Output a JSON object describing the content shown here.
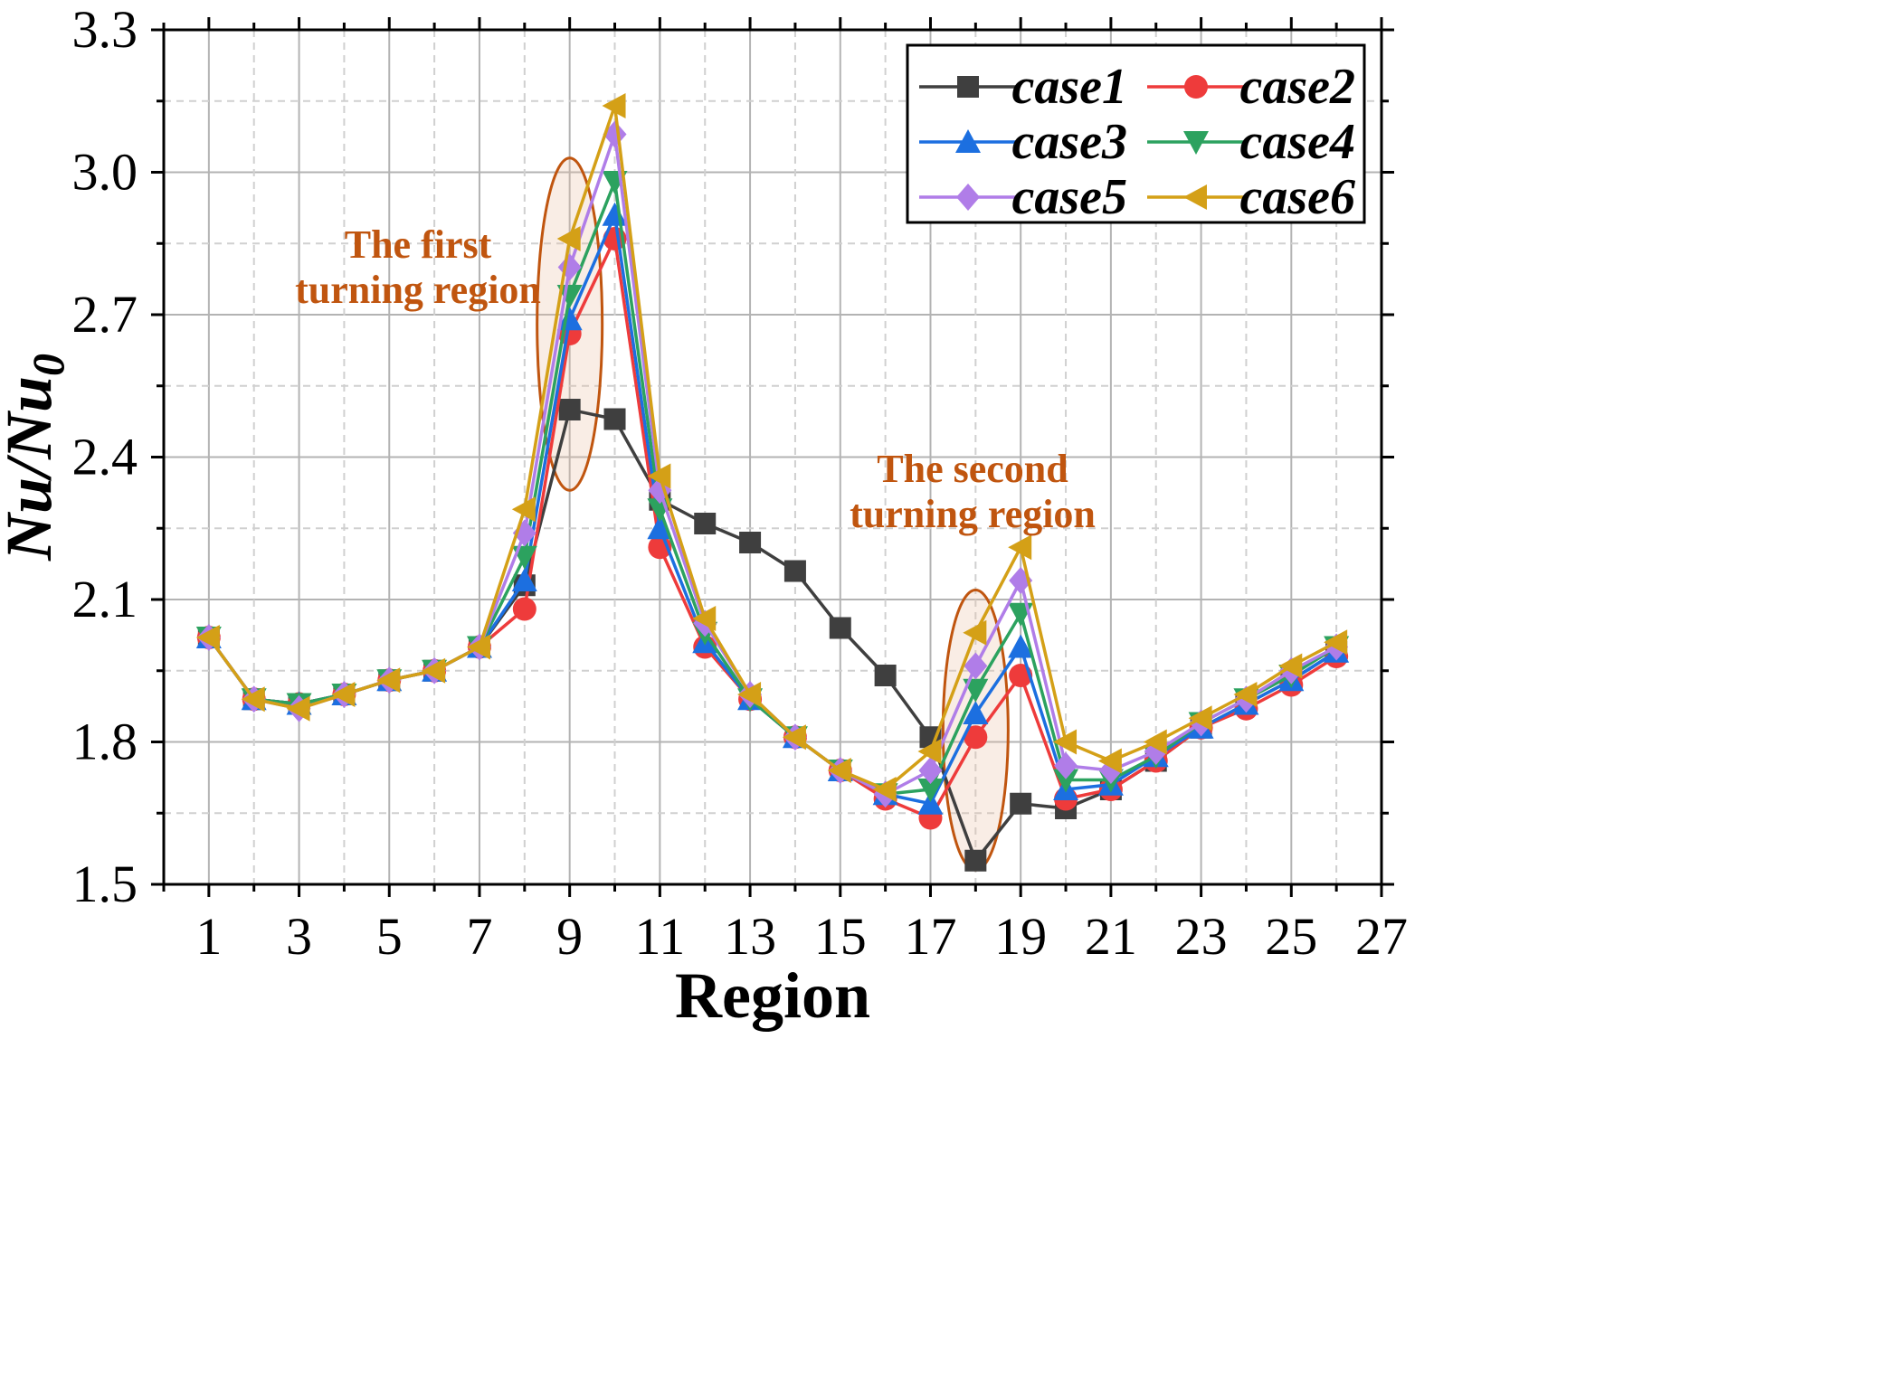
{
  "chart_data": {
    "type": "line",
    "xlabel": "Region",
    "ylabel_main": "Nu/Nu",
    "ylabel_sub": "0",
    "xlim": [
      0,
      27
    ],
    "ylim": [
      1.5,
      3.3
    ],
    "xticks": [
      "1",
      "3",
      "5",
      "7",
      "9",
      "11",
      "13",
      "15",
      "17",
      "19",
      "21",
      "23",
      "25",
      "27"
    ],
    "yticks": [
      "1.5",
      "1.8",
      "2.1",
      "2.4",
      "2.7",
      "3.0",
      "3.3"
    ],
    "x": [
      1,
      2,
      3,
      4,
      5,
      6,
      7,
      8,
      9,
      10,
      11,
      12,
      13,
      14,
      15,
      16,
      17,
      18,
      19,
      20,
      21,
      22,
      23,
      24,
      25,
      26
    ],
    "series": [
      {
        "name": "case1",
        "color": "#3f3f3f",
        "marker": "square",
        "values": [
          2.02,
          1.89,
          1.88,
          1.9,
          1.93,
          1.95,
          2.0,
          2.13,
          2.5,
          2.48,
          2.31,
          2.26,
          2.22,
          2.16,
          2.04,
          1.94,
          1.81,
          1.55,
          1.67,
          1.66,
          1.7,
          1.76,
          1.83,
          1.88,
          1.93,
          1.99
        ]
      },
      {
        "name": "case2",
        "color": "#ee3b3b",
        "marker": "circle",
        "values": [
          2.02,
          1.89,
          1.88,
          1.9,
          1.93,
          1.95,
          2.0,
          2.08,
          2.66,
          2.86,
          2.21,
          2.0,
          1.89,
          1.81,
          1.74,
          1.68,
          1.64,
          1.81,
          1.94,
          1.68,
          1.7,
          1.76,
          1.83,
          1.87,
          1.92,
          1.98
        ]
      },
      {
        "name": "case3",
        "color": "#1c6fe0",
        "marker": "triangle-up",
        "values": [
          2.02,
          1.89,
          1.88,
          1.9,
          1.93,
          1.95,
          2.0,
          2.14,
          2.69,
          2.91,
          2.25,
          2.01,
          1.89,
          1.81,
          1.74,
          1.69,
          1.67,
          1.86,
          2.0,
          1.7,
          1.71,
          1.77,
          1.83,
          1.88,
          1.93,
          1.99
        ]
      },
      {
        "name": "case4",
        "color": "#2ca25f",
        "marker": "triangle-down",
        "values": [
          2.02,
          1.89,
          1.88,
          1.9,
          1.93,
          1.95,
          2.0,
          2.19,
          2.74,
          2.98,
          2.29,
          2.03,
          1.89,
          1.81,
          1.74,
          1.69,
          1.7,
          1.91,
          2.07,
          1.72,
          1.72,
          1.77,
          1.84,
          1.89,
          1.94,
          2.0
        ]
      },
      {
        "name": "case5",
        "color": "#b07de8",
        "marker": "diamond",
        "values": [
          2.02,
          1.89,
          1.87,
          1.9,
          1.93,
          1.95,
          2.0,
          2.24,
          2.8,
          3.08,
          2.33,
          2.05,
          1.9,
          1.81,
          1.74,
          1.69,
          1.74,
          1.96,
          2.14,
          1.75,
          1.74,
          1.78,
          1.84,
          1.89,
          1.95,
          2.0
        ]
      },
      {
        "name": "case6",
        "color": "#d4a017",
        "marker": "triangle-left",
        "values": [
          2.02,
          1.89,
          1.87,
          1.9,
          1.93,
          1.95,
          2.0,
          2.29,
          2.86,
          3.14,
          2.36,
          2.06,
          1.9,
          1.81,
          1.74,
          1.7,
          1.78,
          2.03,
          2.21,
          1.8,
          1.76,
          1.8,
          1.85,
          1.9,
          1.96,
          2.01
        ]
      }
    ],
    "annotations": [
      {
        "line1": "The first",
        "line2": "turning region",
        "x": 9,
        "y_lo": 2.33,
        "y_hi": 3.03
      },
      {
        "line1": "The second",
        "line2": "turning region",
        "x": 18,
        "y_lo": 1.53,
        "y_hi": 2.12
      }
    ],
    "legend_position": "top-right",
    "grid": true
  }
}
